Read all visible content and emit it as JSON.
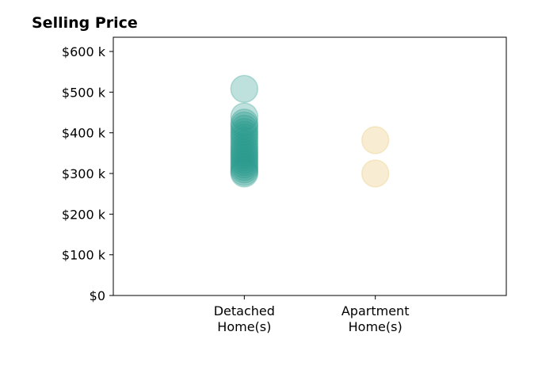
{
  "chart_data": {
    "type": "scatter",
    "title": "Selling Price",
    "xlabel": "",
    "ylabel": "",
    "categories": [
      "Detached Home(s)",
      "Apartment Home(s)"
    ],
    "category_label_lines": [
      [
        "Detached",
        "Home(s)"
      ],
      [
        "Apartment",
        "Home(s)"
      ]
    ],
    "xlim": [
      0,
      3
    ],
    "category_positions": [
      1,
      2
    ],
    "ylim": [
      0,
      635000
    ],
    "yticks": [
      0,
      100000,
      200000,
      300000,
      400000,
      500000,
      600000
    ],
    "ytick_labels": [
      "$0",
      "$100 k",
      "$200 k",
      "$300 k",
      "$400 k",
      "$500 k",
      "$600 k"
    ],
    "grid": false,
    "legend": "none",
    "series": [
      {
        "category": "Detached Home(s)",
        "color": "#2a9d8f",
        "opacity": 0.3,
        "values": [
          508000,
          440000,
          425000,
          418000,
          410000,
          402000,
          395000,
          388000,
          380000,
          372000,
          365000,
          358000,
          352000,
          346000,
          340000,
          334000,
          328000,
          322000,
          316000,
          310000,
          304000,
          300000
        ]
      },
      {
        "category": "Apartment Home(s)",
        "color": "#e9c46a",
        "opacity": 0.3,
        "values": [
          382000,
          300000
        ]
      }
    ]
  }
}
